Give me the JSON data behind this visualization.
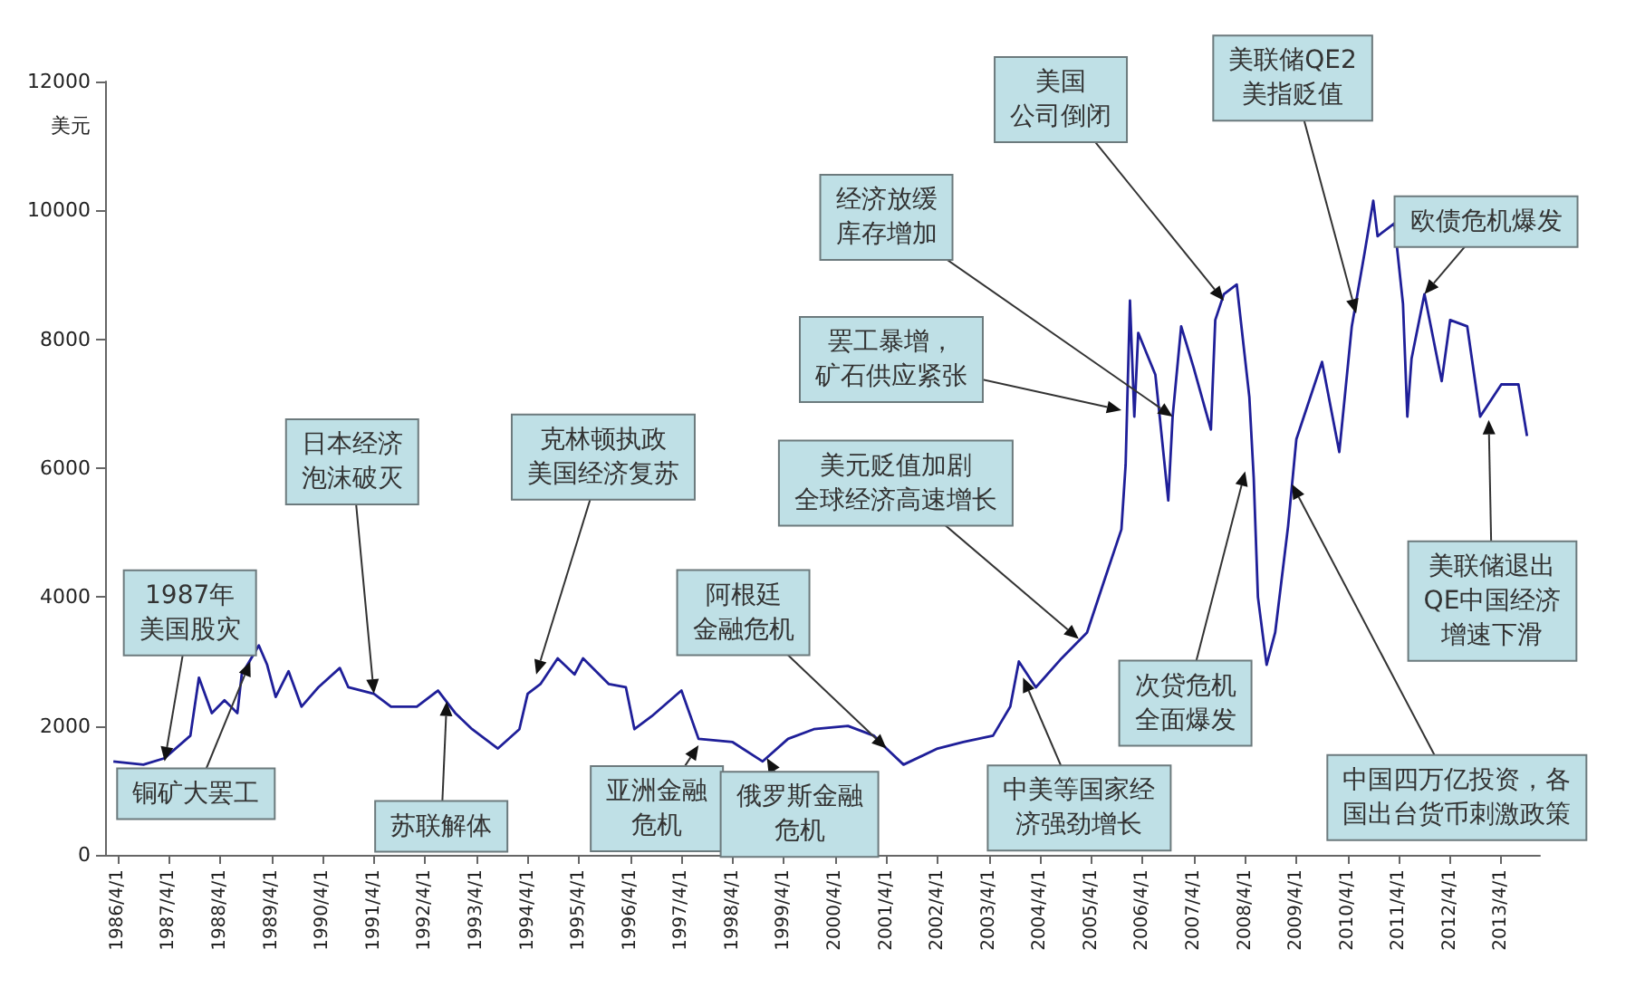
{
  "chart_data": {
    "type": "line",
    "ylabel": "美元",
    "color": "#1f1f99",
    "x": [
      "1986-03",
      "1986-10",
      "1987-03",
      "1987-09",
      "1987-11",
      "1988-02",
      "1988-05",
      "1988-08",
      "1988-09",
      "1989-01",
      "1989-03",
      "1989-05",
      "1989-08",
      "1989-11",
      "1990-03",
      "1990-08",
      "1990-10",
      "1991-04",
      "1991-08",
      "1992-02",
      "1992-07",
      "1992-11",
      "1993-03",
      "1993-09",
      "1994-02",
      "1994-04",
      "1994-07",
      "1994-11",
      "1995-03",
      "1995-05",
      "1995-11",
      "1996-03",
      "1996-05",
      "1996-09",
      "1997-04",
      "1997-08",
      "1998-04",
      "1998-11",
      "1999-05",
      "1999-11",
      "2000-07",
      "2001-01",
      "2001-04",
      "2001-08",
      "2002-04",
      "2002-10",
      "2003-05",
      "2003-09",
      "2003-11",
      "2004-03",
      "2004-09",
      "2005-03",
      "2005-07",
      "2005-11",
      "2005-12",
      "2006-01",
      "2006-02",
      "2006-03",
      "2006-07",
      "2006-08",
      "2006-10",
      "2006-11",
      "2007-01",
      "2007-04",
      "2007-08",
      "2007-09",
      "2007-11",
      "2008-02",
      "2008-05",
      "2008-06",
      "2008-07",
      "2008-09",
      "2008-11",
      "2009-02",
      "2009-04",
      "2009-10",
      "2010-02",
      "2010-05",
      "2010-08",
      "2010-10",
      "2010-11",
      "2011-03",
      "2011-05",
      "2011-06",
      "2011-07",
      "2011-10",
      "2012-02",
      "2012-04",
      "2012-08",
      "2012-11",
      "2013-04",
      "2013-08",
      "2013-10"
    ],
    "values": [
      1450,
      1400,
      1500,
      1850,
      2750,
      2200,
      2400,
      2200,
      2800,
      3250,
      2950,
      2450,
      2850,
      2300,
      2600,
      2900,
      2600,
      2500,
      2300,
      2300,
      2550,
      2200,
      1950,
      1650,
      1950,
      2500,
      2650,
      3050,
      2800,
      3050,
      2650,
      2600,
      1950,
      2150,
      2550,
      1800,
      1750,
      1450,
      1800,
      1950,
      2000,
      1850,
      1650,
      1400,
      1650,
      1750,
      1850,
      2300,
      3000,
      2600,
      3050,
      3450,
      4250,
      5050,
      6050,
      8600,
      6800,
      8100,
      7450,
      6800,
      5500,
      6800,
      8200,
      7550,
      6600,
      8300,
      8700,
      8850,
      7100,
      5850,
      4000,
      2950,
      3450,
      5100,
      6450,
      7650,
      6250,
      8200,
      9350,
      10150,
      9600,
      9800,
      8550,
      6800,
      7700,
      8700,
      7350,
      8300,
      8200,
      6800,
      7300,
      7300,
      6500
    ],
    "xlim": [
      "1986-01",
      "2014-01"
    ],
    "xticks": [
      {
        "value": "1986-04-01",
        "label": "1986/4/1"
      },
      {
        "value": "1987-04-01",
        "label": "1987/4/1"
      },
      {
        "value": "1988-04-01",
        "label": "1988/4/1"
      },
      {
        "value": "1989-04-01",
        "label": "1989/4/1"
      },
      {
        "value": "1990-04-01",
        "label": "1990/4/1"
      },
      {
        "value": "1991-04-01",
        "label": "1991/4/1"
      },
      {
        "value": "1992-04-01",
        "label": "1992/4/1"
      },
      {
        "value": "1993-04-01",
        "label": "1993/4/1"
      },
      {
        "value": "1994-04-01",
        "label": "1994/4/1"
      },
      {
        "value": "1995-04-01",
        "label": "1995/4/1"
      },
      {
        "value": "1996-04-01",
        "label": "1996/4/1"
      },
      {
        "value": "1997-04-01",
        "label": "1997/4/1"
      },
      {
        "value": "1998-04-01",
        "label": "1998/4/1"
      },
      {
        "value": "1999-04-01",
        "label": "1999/4/1"
      },
      {
        "value": "2000-04-01",
        "label": "2000/4/1"
      },
      {
        "value": "2001-04-01",
        "label": "2001/4/1"
      },
      {
        "value": "2002-04-01",
        "label": "2002/4/1"
      },
      {
        "value": "2003-04-01",
        "label": "2003/4/1"
      },
      {
        "value": "2004-04-01",
        "label": "2004/4/1"
      },
      {
        "value": "2005-04-01",
        "label": "2005/4/1"
      },
      {
        "value": "2006-04-01",
        "label": "2006/4/1"
      },
      {
        "value": "2007-04-01",
        "label": "2007/4/1"
      },
      {
        "value": "2008-04-01",
        "label": "2008/4/1"
      },
      {
        "value": "2009-04-01",
        "label": "2009/4/1"
      },
      {
        "value": "2010-04-01",
        "label": "2010/4/1"
      },
      {
        "value": "2011-04-01",
        "label": "2011/4/1"
      },
      {
        "value": "2012-04-01",
        "label": "2012/4/1"
      },
      {
        "value": "2013-04-01",
        "label": "2013/4/1"
      }
    ],
    "ylim": [
      0,
      12000
    ],
    "yticks": [
      0,
      2000,
      4000,
      6000,
      8000,
      10000,
      12000
    ],
    "annotations": [
      {
        "text": "1987年美国股灾",
        "x": "1987-03",
        "y": 1450
      },
      {
        "text": "铜矿大罢工",
        "x": "1988-11",
        "y": 3000
      },
      {
        "text": "日本经济泡沫破灭",
        "x": "1991-04",
        "y": 2500
      },
      {
        "text": "苏联解体",
        "x": "1992-09",
        "y": 2380
      },
      {
        "text": "克林顿执政美国经济复苏",
        "x": "1994-06",
        "y": 2800
      },
      {
        "text": "亚洲金融危机",
        "x": "1997-08",
        "y": 1700
      },
      {
        "text": "阿根廷金融危机",
        "x": "2001-04",
        "y": 1650
      },
      {
        "text": "俄罗斯金融危机",
        "x": "1998-12",
        "y": 1500
      },
      {
        "text": "美元贬值加剧全球经济高速增长",
        "x": "2005-01",
        "y": 3350
      },
      {
        "text": "中美等国家经济强劲增长",
        "x": "2003-12",
        "y": 2750
      },
      {
        "text": "罢工暴增，矿石供应紧张",
        "x": "2005-11",
        "y": 6900
      },
      {
        "text": "经济放缓库存增加",
        "x": "2006-11",
        "y": 6800
      },
      {
        "text": "美国公司倒闭",
        "x": "2007-11",
        "y": 8600
      },
      {
        "text": "美联储QE2美指贬值",
        "x": "2010-06",
        "y": 8400
      },
      {
        "text": "欧债危机爆发",
        "x": "2011-10",
        "y": 8700
      },
      {
        "text": "美联储退出QE中国经济增速下滑",
        "x": "2013-01",
        "y": 6750
      },
      {
        "text": "中国四万亿投资，各国出台货币刺激政策",
        "x": "2009-03",
        "y": 5750
      },
      {
        "text": "次贷危机全面爆发",
        "x": "2008-04",
        "y": 5950
      }
    ]
  }
}
